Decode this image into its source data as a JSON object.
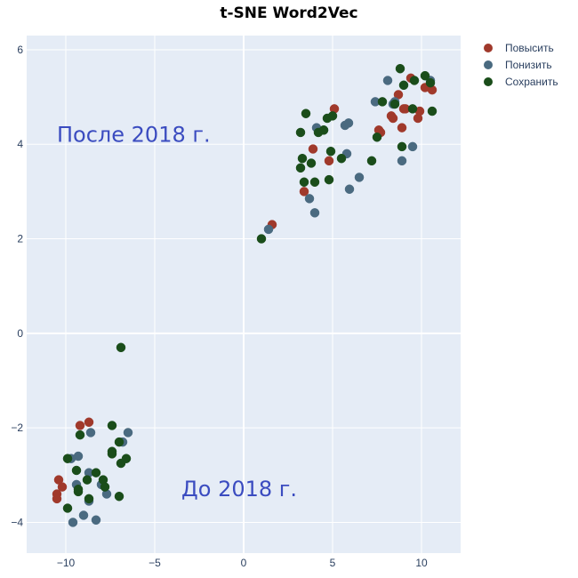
{
  "chart_data": {
    "type": "scatter",
    "title": "t-SNE Word2Vec",
    "xlabel": "",
    "ylabel": "",
    "xlim": [
      -12.2,
      12.2
    ],
    "ylim": [
      -4.65,
      6.3
    ],
    "xticks": [
      -10,
      -5,
      0,
      5,
      10
    ],
    "yticks": [
      -4,
      -2,
      0,
      2,
      4,
      6
    ],
    "xtick_labels": [
      "−10",
      "−5",
      "0",
      "5",
      "10"
    ],
    "ytick_labels": [
      "−4",
      "−2",
      "0",
      "2",
      "4",
      "6"
    ],
    "grid": true,
    "legend_position": "top-right",
    "background": "#e5ecf6",
    "series": [
      {
        "name": "Повысить",
        "color": "#a0392b",
        "points": [
          [
            -10.4,
            -3.1
          ],
          [
            -10.2,
            -3.25
          ],
          [
            -10.5,
            -3.4
          ],
          [
            -10.5,
            -3.5
          ],
          [
            -9.2,
            -1.95
          ],
          [
            -8.7,
            -1.88
          ],
          [
            1.6,
            2.3
          ],
          [
            3.4,
            3.0
          ],
          [
            3.9,
            3.9
          ],
          [
            4.8,
            3.65
          ],
          [
            5.1,
            4.75
          ],
          [
            7.6,
            4.3
          ],
          [
            7.7,
            4.25
          ],
          [
            8.3,
            4.6
          ],
          [
            8.4,
            4.55
          ],
          [
            8.7,
            5.05
          ],
          [
            8.9,
            4.35
          ],
          [
            9.0,
            4.75
          ],
          [
            9.1,
            4.75
          ],
          [
            9.4,
            5.4
          ],
          [
            9.8,
            4.55
          ],
          [
            9.9,
            4.7
          ],
          [
            10.2,
            5.2
          ],
          [
            10.6,
            5.15
          ]
        ]
      },
      {
        "name": "Понизить",
        "color": "#4a6a80",
        "points": [
          [
            -9.7,
            -2.65
          ],
          [
            -9.4,
            -3.2
          ],
          [
            -9.3,
            -2.6
          ],
          [
            -9.0,
            -3.85
          ],
          [
            -9.6,
            -4.0
          ],
          [
            -8.6,
            -2.1
          ],
          [
            -8.7,
            -2.95
          ],
          [
            -8.7,
            -3.55
          ],
          [
            -8.3,
            -3.95
          ],
          [
            -8.0,
            -3.2
          ],
          [
            -7.7,
            -3.4
          ],
          [
            -6.8,
            -2.3
          ],
          [
            -6.5,
            -2.1
          ],
          [
            1.4,
            2.2
          ],
          [
            3.7,
            2.85
          ],
          [
            4.0,
            2.55
          ],
          [
            4.1,
            4.35
          ],
          [
            4.5,
            4.3
          ],
          [
            5.7,
            4.4
          ],
          [
            5.8,
            3.8
          ],
          [
            5.9,
            4.45
          ],
          [
            5.95,
            3.05
          ],
          [
            6.5,
            3.3
          ],
          [
            7.4,
            4.9
          ],
          [
            8.1,
            5.35
          ],
          [
            8.4,
            4.85
          ],
          [
            8.5,
            4.9
          ],
          [
            8.9,
            3.65
          ],
          [
            9.5,
            3.95
          ],
          [
            10.5,
            5.35
          ]
        ]
      },
      {
        "name": "Сохранить",
        "color": "#1a4d1a",
        "points": [
          [
            -9.9,
            -3.7
          ],
          [
            -9.9,
            -2.65
          ],
          [
            -9.4,
            -2.9
          ],
          [
            -9.3,
            -3.35
          ],
          [
            -9.3,
            -3.3
          ],
          [
            -9.2,
            -2.15
          ],
          [
            -8.8,
            -3.1
          ],
          [
            -8.7,
            -3.5
          ],
          [
            -8.3,
            -2.95
          ],
          [
            -7.9,
            -3.1
          ],
          [
            -7.8,
            -3.25
          ],
          [
            -7.4,
            -1.95
          ],
          [
            -7.4,
            -2.5
          ],
          [
            -7.4,
            -2.55
          ],
          [
            -7.0,
            -2.3
          ],
          [
            -7.0,
            -3.45
          ],
          [
            -6.9,
            -2.75
          ],
          [
            -6.6,
            -2.65
          ],
          [
            -6.9,
            -0.3
          ],
          [
            1.0,
            2.0
          ],
          [
            3.2,
            3.5
          ],
          [
            3.2,
            4.25
          ],
          [
            3.3,
            3.7
          ],
          [
            3.4,
            3.2
          ],
          [
            3.5,
            4.65
          ],
          [
            3.8,
            3.6
          ],
          [
            4.0,
            3.2
          ],
          [
            4.2,
            4.25
          ],
          [
            4.5,
            4.3
          ],
          [
            4.7,
            4.55
          ],
          [
            4.8,
            3.25
          ],
          [
            4.9,
            3.85
          ],
          [
            5.0,
            4.6
          ],
          [
            5.5,
            3.7
          ],
          [
            7.2,
            3.65
          ],
          [
            7.5,
            4.15
          ],
          [
            7.8,
            4.9
          ],
          [
            8.5,
            4.85
          ],
          [
            8.8,
            5.6
          ],
          [
            8.9,
            3.95
          ],
          [
            9.0,
            5.25
          ],
          [
            9.5,
            4.75
          ],
          [
            9.6,
            5.35
          ],
          [
            10.2,
            5.45
          ],
          [
            10.5,
            5.3
          ],
          [
            10.6,
            4.7
          ]
        ]
      }
    ],
    "annotations": [
      {
        "text": "После 2018 г.",
        "x": -10.5,
        "y": 4.05
      },
      {
        "text": "До 2018 г.",
        "x": -3.5,
        "y": -3.45
      }
    ]
  }
}
